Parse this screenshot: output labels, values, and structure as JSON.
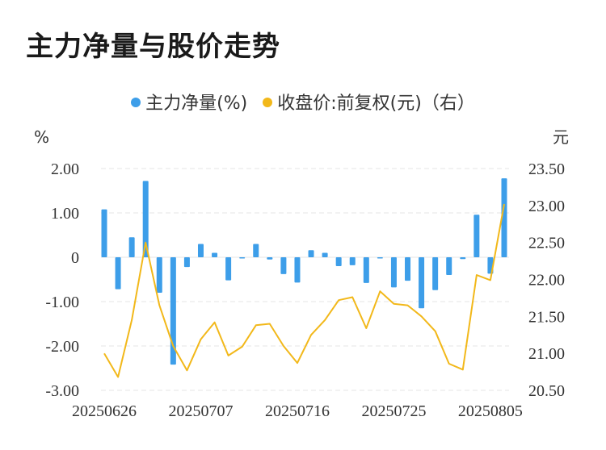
{
  "title": "主力净量与股价走势",
  "chart_data": {
    "type": "bar",
    "title": "主力净量与股价走势",
    "left_axis_unit": "%",
    "right_axis_unit": "元",
    "left_ylim": [
      -3,
      2
    ],
    "right_ylim": [
      20.5,
      23.5
    ],
    "left_ticks": [
      "2.00",
      "1.00",
      "0",
      "-1.00",
      "-2.00",
      "-3.00"
    ],
    "right_ticks": [
      "23.50",
      "23.00",
      "22.50",
      "22.00",
      "21.50",
      "21.00",
      "20.50"
    ],
    "x_tick_labels": [
      "20250626",
      "20250707",
      "20250716",
      "20250725",
      "20250805"
    ],
    "legend_position": "top-center",
    "grid": true,
    "categories": [
      "20250626",
      "20250627",
      "20250630",
      "20250701",
      "20250702",
      "20250703",
      "20250704",
      "20250707",
      "20250708",
      "20250709",
      "20250710",
      "20250711",
      "20250714",
      "20250715",
      "20250716",
      "20250717",
      "20250718",
      "20250721",
      "20250722",
      "20250723",
      "20250724",
      "20250725",
      "20250728",
      "20250729",
      "20250730",
      "20250731",
      "20250801",
      "20250804",
      "20250805",
      "20250806"
    ],
    "series": [
      {
        "name": "主力净量(%)",
        "type": "bar",
        "axis": "left",
        "color": "#3d9ee9",
        "values": [
          1.08,
          -0.72,
          0.45,
          1.72,
          -0.8,
          -2.42,
          -0.22,
          0.3,
          0.1,
          -0.52,
          -0.02,
          0.3,
          -0.05,
          -0.38,
          -0.57,
          0.16,
          0.1,
          -0.2,
          -0.18,
          -0.58,
          -0.02,
          -0.68,
          -0.53,
          -1.15,
          -0.74,
          -0.4,
          -0.04,
          0.96,
          -0.37,
          1.78
        ]
      },
      {
        "name": "收盘价:前复权(元)（右）",
        "type": "line",
        "axis": "right",
        "color": "#f2b81a",
        "values": [
          21.0,
          20.68,
          21.45,
          22.5,
          21.65,
          21.1,
          20.77,
          21.19,
          21.42,
          20.97,
          21.09,
          21.38,
          21.4,
          21.1,
          20.87,
          21.25,
          21.45,
          21.72,
          21.76,
          21.34,
          21.84,
          21.67,
          21.65,
          21.5,
          21.3,
          20.86,
          20.78,
          22.06,
          21.99,
          23.02
        ]
      }
    ]
  }
}
